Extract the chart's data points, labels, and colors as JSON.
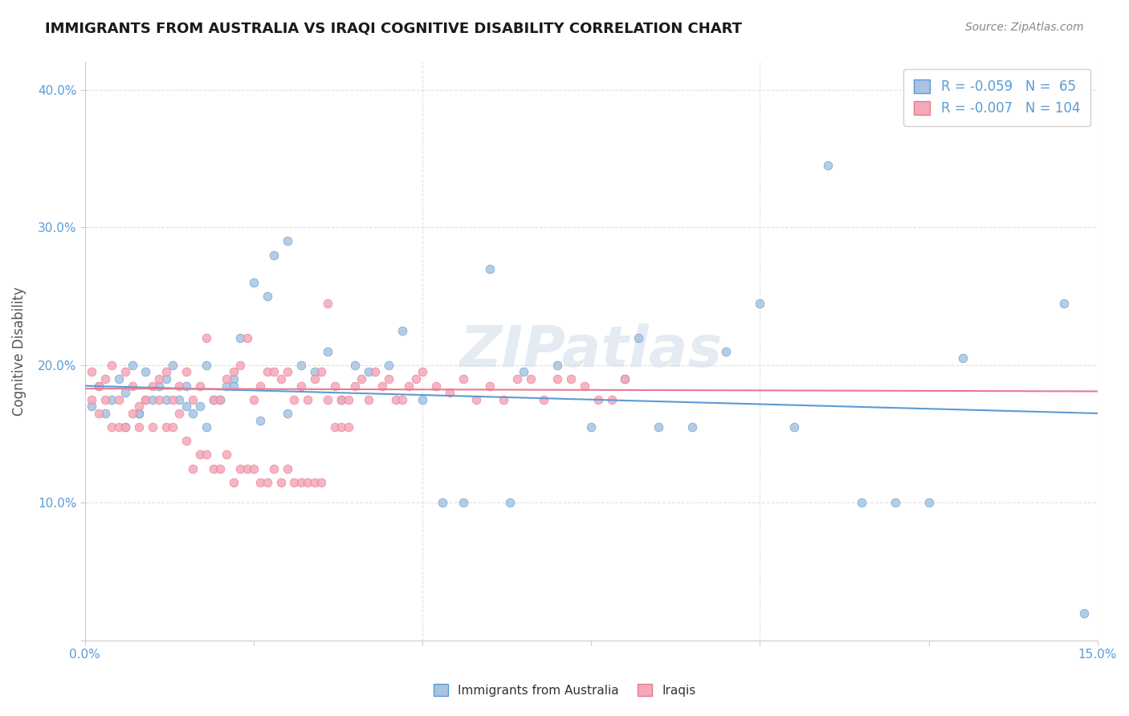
{
  "title": "IMMIGRANTS FROM AUSTRALIA VS IRAQI COGNITIVE DISABILITY CORRELATION CHART",
  "source": "Source: ZipAtlas.com",
  "xlabel_label": "Immigrants from Australia",
  "xlabel_label2": "Iraqis",
  "ylabel": "Cognitive Disability",
  "xlim": [
    0.0,
    0.15
  ],
  "ylim": [
    0.0,
    0.42
  ],
  "xticks": [
    0.0,
    0.025,
    0.05,
    0.075,
    0.1,
    0.125,
    0.15
  ],
  "xtick_labels": [
    "0.0%",
    "",
    "",
    "",
    "",
    "",
    "15.0%"
  ],
  "yticks": [
    0.0,
    0.1,
    0.2,
    0.3,
    0.4
  ],
  "ytick_labels": [
    "",
    "10.0%",
    "20.0%",
    "30.0%",
    "40.0%"
  ],
  "blue_color": "#a8c4e0",
  "pink_color": "#f4a8b8",
  "blue_line_color": "#5b9bd5",
  "pink_line_color": "#e87a90",
  "legend_blue_R": "R = -0.059",
  "legend_blue_N": "N =  65",
  "legend_pink_R": "R = -0.007",
  "legend_pink_N": "N = 104",
  "watermark": "ZIPatlas",
  "blue_scatter_x": [
    0.002,
    0.004,
    0.005,
    0.006,
    0.007,
    0.008,
    0.009,
    0.01,
    0.011,
    0.012,
    0.013,
    0.014,
    0.015,
    0.016,
    0.017,
    0.018,
    0.019,
    0.02,
    0.021,
    0.022,
    0.023,
    0.025,
    0.027,
    0.028,
    0.03,
    0.032,
    0.034,
    0.036,
    0.038,
    0.04,
    0.042,
    0.045,
    0.047,
    0.05,
    0.053,
    0.056,
    0.06,
    0.063,
    0.065,
    0.07,
    0.075,
    0.08,
    0.085,
    0.09,
    0.095,
    0.1,
    0.105,
    0.11,
    0.115,
    0.12,
    0.125,
    0.13,
    0.082,
    0.145,
    0.148,
    0.001,
    0.003,
    0.006,
    0.008,
    0.012,
    0.015,
    0.018,
    0.022,
    0.026,
    0.03
  ],
  "blue_scatter_y": [
    0.185,
    0.175,
    0.19,
    0.18,
    0.2,
    0.165,
    0.195,
    0.175,
    0.185,
    0.19,
    0.2,
    0.175,
    0.185,
    0.165,
    0.17,
    0.2,
    0.175,
    0.175,
    0.185,
    0.19,
    0.22,
    0.26,
    0.25,
    0.28,
    0.29,
    0.2,
    0.195,
    0.21,
    0.175,
    0.2,
    0.195,
    0.2,
    0.225,
    0.175,
    0.1,
    0.1,
    0.27,
    0.1,
    0.195,
    0.2,
    0.155,
    0.19,
    0.155,
    0.155,
    0.21,
    0.245,
    0.155,
    0.345,
    0.1,
    0.1,
    0.1,
    0.205,
    0.22,
    0.245,
    0.02,
    0.17,
    0.165,
    0.155,
    0.165,
    0.175,
    0.17,
    0.155,
    0.185,
    0.16,
    0.165
  ],
  "pink_scatter_x": [
    0.001,
    0.002,
    0.003,
    0.004,
    0.005,
    0.006,
    0.007,
    0.008,
    0.009,
    0.01,
    0.011,
    0.012,
    0.013,
    0.014,
    0.015,
    0.016,
    0.017,
    0.018,
    0.019,
    0.02,
    0.021,
    0.022,
    0.023,
    0.024,
    0.025,
    0.026,
    0.027,
    0.028,
    0.029,
    0.03,
    0.031,
    0.032,
    0.033,
    0.034,
    0.035,
    0.036,
    0.037,
    0.038,
    0.039,
    0.04,
    0.041,
    0.042,
    0.043,
    0.044,
    0.045,
    0.046,
    0.047,
    0.048,
    0.049,
    0.05,
    0.052,
    0.054,
    0.056,
    0.058,
    0.06,
    0.062,
    0.064,
    0.066,
    0.068,
    0.07,
    0.072,
    0.074,
    0.076,
    0.078,
    0.08,
    0.001,
    0.002,
    0.003,
    0.004,
    0.005,
    0.006,
    0.007,
    0.008,
    0.009,
    0.01,
    0.011,
    0.012,
    0.013,
    0.014,
    0.015,
    0.016,
    0.017,
    0.018,
    0.019,
    0.02,
    0.021,
    0.022,
    0.023,
    0.024,
    0.025,
    0.026,
    0.027,
    0.028,
    0.029,
    0.03,
    0.031,
    0.032,
    0.033,
    0.034,
    0.035,
    0.036,
    0.037,
    0.038,
    0.039
  ],
  "pink_scatter_y": [
    0.195,
    0.185,
    0.19,
    0.2,
    0.175,
    0.195,
    0.185,
    0.17,
    0.175,
    0.185,
    0.19,
    0.195,
    0.175,
    0.185,
    0.195,
    0.175,
    0.185,
    0.22,
    0.175,
    0.175,
    0.19,
    0.195,
    0.2,
    0.22,
    0.175,
    0.185,
    0.195,
    0.195,
    0.19,
    0.195,
    0.175,
    0.185,
    0.175,
    0.19,
    0.195,
    0.175,
    0.185,
    0.175,
    0.175,
    0.185,
    0.19,
    0.175,
    0.195,
    0.185,
    0.19,
    0.175,
    0.175,
    0.185,
    0.19,
    0.195,
    0.185,
    0.18,
    0.19,
    0.175,
    0.185,
    0.175,
    0.19,
    0.19,
    0.175,
    0.19,
    0.19,
    0.185,
    0.175,
    0.175,
    0.19,
    0.175,
    0.165,
    0.175,
    0.155,
    0.155,
    0.155,
    0.165,
    0.155,
    0.175,
    0.155,
    0.175,
    0.155,
    0.155,
    0.165,
    0.145,
    0.125,
    0.135,
    0.135,
    0.125,
    0.125,
    0.135,
    0.115,
    0.125,
    0.125,
    0.125,
    0.115,
    0.115,
    0.125,
    0.115,
    0.125,
    0.115,
    0.115,
    0.115,
    0.115,
    0.115,
    0.245,
    0.155,
    0.155,
    0.155
  ],
  "blue_trend_x": [
    0.0,
    0.15
  ],
  "blue_trend_y": [
    0.185,
    0.165
  ],
  "pink_trend_x": [
    0.0,
    0.15
  ],
  "pink_trend_y": [
    0.183,
    0.181
  ],
  "background_color": "#ffffff",
  "grid_color": "#e0e0e0",
  "title_color": "#1a1a1a",
  "axis_color": "#5b9bd5",
  "watermark_color": "#d0dce8"
}
